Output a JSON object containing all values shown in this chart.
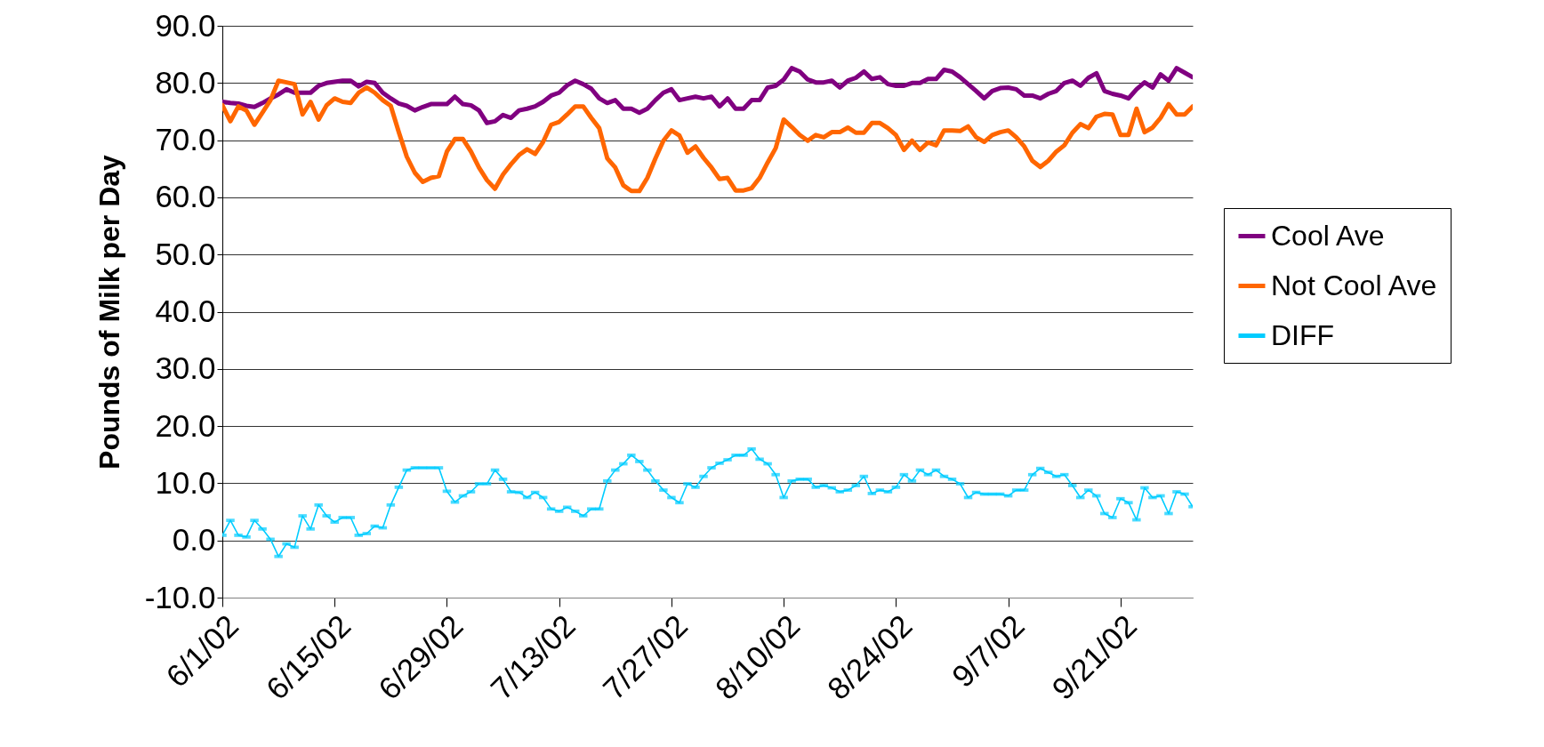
{
  "chart_data": {
    "type": "line",
    "ylabel": "Pounds of Milk per Day",
    "x": [
      "--06-01",
      "--06-02",
      "--06-03",
      "--06-04",
      "--06-05",
      "--06-06",
      "--06-07",
      "--06-08",
      "--06-09",
      "--06-10",
      "--06-11",
      "--06-12",
      "--06-13",
      "--06-14",
      "--06-15",
      "--06-16",
      "--06-17",
      "--06-18",
      "--06-19",
      "--06-20",
      "--06-21",
      "--06-22",
      "--06-23",
      "--06-24",
      "--06-25",
      "--06-26",
      "--06-27",
      "--06-28",
      "--06-29",
      "--06-30",
      "--07-01",
      "--07-02",
      "--07-03",
      "--07-04",
      "--07-05",
      "--07-06",
      "--07-07",
      "--07-08",
      "--07-09",
      "--07-10",
      "--07-11",
      "--07-12",
      "--07-13",
      "--07-14",
      "--07-15",
      "--07-16",
      "--07-17",
      "--07-18",
      "--07-19",
      "--07-20",
      "--07-21",
      "--07-22",
      "--07-23",
      "--07-24",
      "--07-25",
      "--07-26",
      "--07-27",
      "--07-28",
      "--07-29",
      "--07-30",
      "--07-31",
      "--08-01",
      "--08-02",
      "--08-03",
      "--08-04",
      "--08-05",
      "--08-06",
      "--08-07",
      "--08-08",
      "--08-09",
      "--08-10",
      "--08-11",
      "--08-12",
      "--08-13",
      "--08-14",
      "--08-15",
      "--08-16",
      "--08-17",
      "--08-18",
      "--08-19",
      "--08-20",
      "--08-21",
      "--08-22",
      "--08-23",
      "--08-24",
      "--08-25",
      "--08-26",
      "--08-27",
      "--08-28",
      "--08-29",
      "--08-30",
      "--08-31",
      "--09-01",
      "--09-02",
      "--09-03",
      "--09-04",
      "--09-05",
      "--09-06",
      "--09-07",
      "--09-08",
      "--09-09",
      "--09-10",
      "--09-11",
      "--09-12",
      "--09-13",
      "--09-14",
      "--09-15",
      "--09-16",
      "--09-17",
      "--09-18",
      "--09-19",
      "--09-20",
      "--09-21",
      "--09-22",
      "--09-23",
      "--09-24",
      "--09-25",
      "--09-26",
      "--09-27",
      "--09-28",
      "--09-29",
      "--09-30"
    ],
    "series": [
      {
        "name": "Cool Ave",
        "color": "#800080",
        "values": [
          76.7,
          76.5,
          76.4,
          76.0,
          75.8,
          76.5,
          77.3,
          78.0,
          78.9,
          78.3,
          78.3,
          78.3,
          79.5,
          80.0,
          80.2,
          80.4,
          80.4,
          79.4,
          80.2,
          80.0,
          78.3,
          77.3,
          76.4,
          76.0,
          75.2,
          75.8,
          76.3,
          76.3,
          76.3,
          77.6,
          76.3,
          76.1,
          75.2,
          73.0,
          73.3,
          74.4,
          73.9,
          75.2,
          75.5,
          75.9,
          76.7,
          77.8,
          78.3,
          79.6,
          80.4,
          79.8,
          79.0,
          77.3,
          76.5,
          77.0,
          75.5,
          75.5,
          74.8,
          75.5,
          77.0,
          78.3,
          78.9,
          77.0,
          77.3,
          77.6,
          77.3,
          77.6,
          75.9,
          77.3,
          75.5,
          75.5,
          77.0,
          77.0,
          79.2,
          79.5,
          80.6,
          82.6,
          82.0,
          80.6,
          80.1,
          80.1,
          80.4,
          79.2,
          80.4,
          80.9,
          82.0,
          80.7,
          81.0,
          79.8,
          79.5,
          79.5,
          80.0,
          80.0,
          80.7,
          80.7,
          82.3,
          82.0,
          81.0,
          79.8,
          78.6,
          77.3,
          78.6,
          79.1,
          79.2,
          78.9,
          77.8,
          77.8,
          77.3,
          78.1,
          78.6,
          80.0,
          80.4,
          79.5,
          80.9,
          81.7,
          78.6,
          78.1,
          77.8,
          77.3,
          78.9,
          80.1,
          79.2,
          81.5,
          80.4,
          82.6,
          81.8,
          81.0
        ]
      },
      {
        "name": "Not Cool Ave",
        "color": "#ff6600",
        "values": [
          76.1,
          73.3,
          75.9,
          75.2,
          72.7,
          74.8,
          77.0,
          80.4,
          80.1,
          79.8,
          74.5,
          76.7,
          73.6,
          76.1,
          77.3,
          76.7,
          76.5,
          78.3,
          79.2,
          78.3,
          77.0,
          76.0,
          71.4,
          67.1,
          64.3,
          62.7,
          63.4,
          63.7,
          68.0,
          70.2,
          70.2,
          68.0,
          65.2,
          63.0,
          61.5,
          64.0,
          65.8,
          67.4,
          68.4,
          67.6,
          69.7,
          72.7,
          73.2,
          74.5,
          75.9,
          75.9,
          73.9,
          72.1,
          66.8,
          65.2,
          62.1,
          61.1,
          61.1,
          63.4,
          66.8,
          69.9,
          71.7,
          70.8,
          67.8,
          68.9,
          66.9,
          65.2,
          63.2,
          63.4,
          61.2,
          61.2,
          61.6,
          63.4,
          66.1,
          68.6,
          73.6,
          72.3,
          70.9,
          69.9,
          70.9,
          70.5,
          71.4,
          71.4,
          72.2,
          71.3,
          71.3,
          73.0,
          73.0,
          72.1,
          70.9,
          68.3,
          69.9,
          68.3,
          69.6,
          69.1,
          71.7,
          71.7,
          71.6,
          72.4,
          70.5,
          69.7,
          70.9,
          71.4,
          71.7,
          70.5,
          68.9,
          66.4,
          65.3,
          66.4,
          68.0,
          69.1,
          71.3,
          72.8,
          72.1,
          74.1,
          74.6,
          74.5,
          70.9,
          70.9,
          75.5,
          71.4,
          72.2,
          73.9,
          76.3,
          74.5,
          74.5,
          75.9
        ]
      },
      {
        "name": "DIFF",
        "color": "#00ccff",
        "marker": "square",
        "values": [
          0.9,
          3.5,
          0.9,
          0.6,
          3.5,
          2.0,
          0.2,
          -2.8,
          -0.6,
          -1.2,
          4.3,
          2.0,
          6.2,
          4.3,
          3.2,
          4.0,
          4.0,
          0.9,
          1.2,
          2.5,
          2.2,
          6.2,
          9.3,
          12.3,
          12.7,
          12.7,
          12.7,
          12.7,
          8.6,
          6.7,
          7.8,
          8.5,
          9.9,
          9.9,
          12.3,
          10.7,
          8.5,
          8.4,
          7.5,
          8.4,
          7.5,
          5.5,
          5.1,
          5.8,
          5.1,
          4.3,
          5.5,
          5.5,
          10.4,
          12.3,
          13.4,
          14.9,
          13.8,
          12.3,
          10.4,
          8.8,
          7.5,
          6.6,
          9.9,
          9.3,
          11.2,
          12.7,
          13.5,
          14.1,
          14.9,
          14.9,
          16.0,
          14.2,
          13.4,
          11.5,
          7.5,
          10.4,
          10.7,
          10.7,
          9.3,
          9.6,
          9.2,
          8.5,
          8.8,
          9.6,
          11.2,
          8.2,
          8.8,
          8.5,
          9.3,
          11.5,
          10.4,
          12.3,
          11.5,
          12.3,
          11.2,
          10.7,
          9.9,
          7.5,
          8.4,
          8.1,
          8.1,
          8.1,
          7.8,
          8.8,
          8.8,
          11.5,
          12.6,
          11.9,
          11.2,
          11.5,
          9.6,
          7.5,
          8.8,
          7.8,
          4.7,
          4.0,
          7.3,
          6.6,
          3.6,
          9.2,
          7.5,
          7.8,
          4.7,
          8.5,
          8.1,
          5.9
        ]
      }
    ],
    "xlim": [
      "--06-01",
      "--09-30"
    ],
    "xticks": [
      {
        "value": "--06-01",
        "label": "6/1/02"
      },
      {
        "value": "--06-15",
        "label": "6/15/02"
      },
      {
        "value": "--06-29",
        "label": "6/29/02"
      },
      {
        "value": "--07-13",
        "label": "7/13/02"
      },
      {
        "value": "--07-27",
        "label": "7/27/02"
      },
      {
        "value": "--08-10",
        "label": "8/10/02"
      },
      {
        "value": "--08-24",
        "label": "8/24/02"
      },
      {
        "value": "--09-07",
        "label": "9/7/02"
      },
      {
        "value": "--09-21",
        "label": "9/21/02"
      }
    ],
    "ylim": [
      -10,
      90
    ],
    "yticks": [
      {
        "value": -10,
        "label": "-10.0"
      },
      {
        "value": 0,
        "label": "0.0"
      },
      {
        "value": 10,
        "label": "10.0"
      },
      {
        "value": 20,
        "label": "20.0"
      },
      {
        "value": 30,
        "label": "30.0"
      },
      {
        "value": 40,
        "label": "40.0"
      },
      {
        "value": 50,
        "label": "50.0"
      },
      {
        "value": 60,
        "label": "60.0"
      },
      {
        "value": 70,
        "label": "70.0"
      },
      {
        "value": 80,
        "label": "80.0"
      },
      {
        "value": 90,
        "label": "90.0"
      }
    ],
    "grid": "y",
    "legend": "right"
  }
}
